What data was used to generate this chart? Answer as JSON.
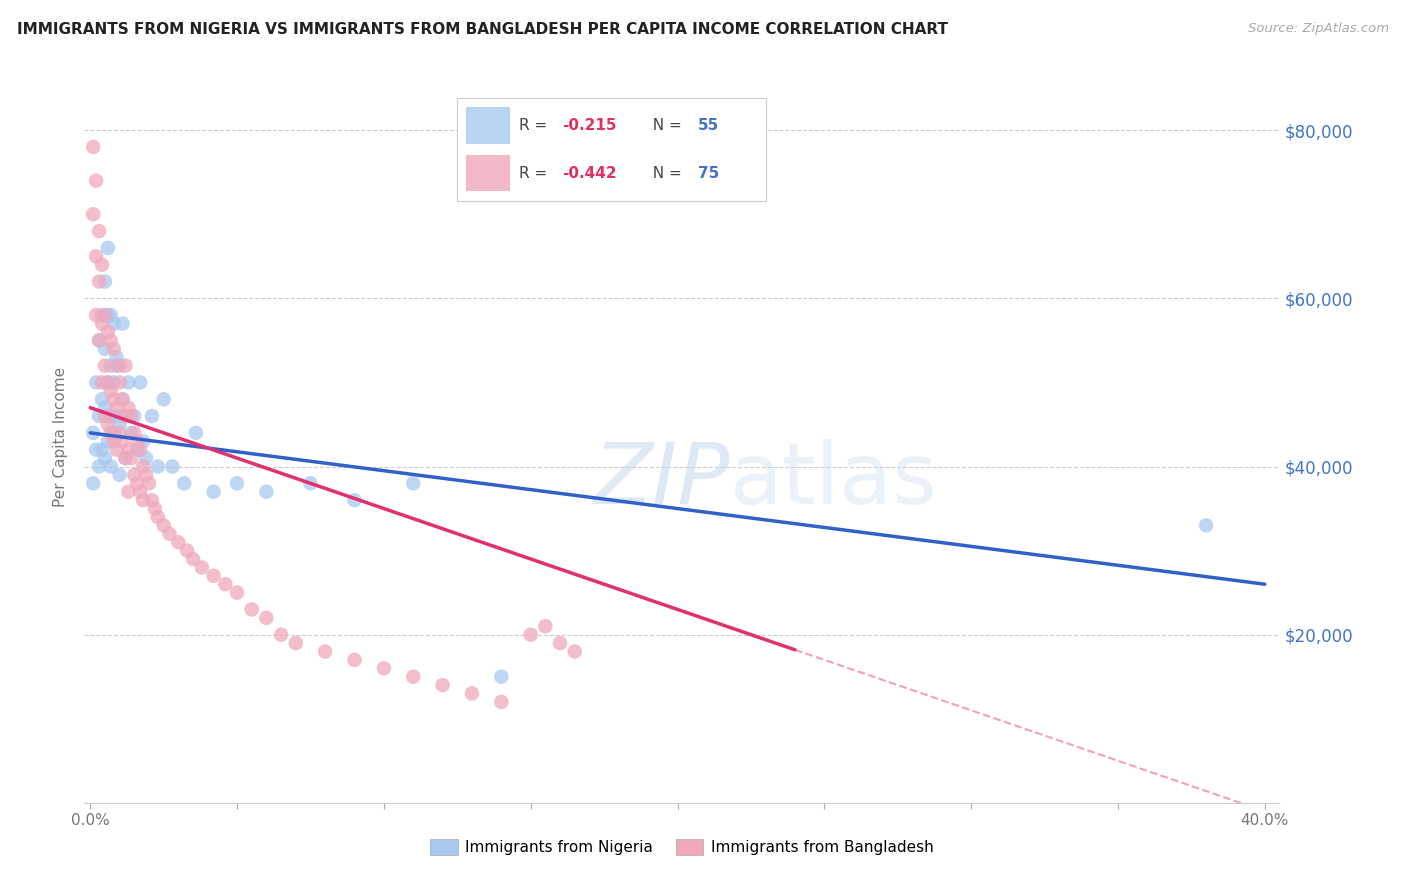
{
  "title": "IMMIGRANTS FROM NIGERIA VS IMMIGRANTS FROM BANGLADESH PER CAPITA INCOME CORRELATION CHART",
  "source": "Source: ZipAtlas.com",
  "ylabel": "Per Capita Income",
  "ylim": [
    0,
    87000
  ],
  "xlim": [
    -0.002,
    0.405
  ],
  "yticks": [
    0,
    20000,
    40000,
    60000,
    80000
  ],
  "ytick_labels": [
    "",
    "$20,000",
    "$40,000",
    "$60,000",
    "$80,000"
  ],
  "nigeria_R": "-0.215",
  "nigeria_N": "55",
  "bangladesh_R": "-0.442",
  "bangladesh_N": "75",
  "nigeria_color": "#a8c8f0",
  "bangladesh_color": "#f0a8bc",
  "nigeria_line_color": "#3060c8",
  "bangladesh_line_color": "#e03070",
  "legend_label1": "Immigrants from Nigeria",
  "legend_label2": "Immigrants from Bangladesh",
  "watermark_zip": "ZIP",
  "watermark_atlas": "atlas",
  "nigeria_line_intercept": 44000,
  "nigeria_line_slope": -45000,
  "bangladesh_line_intercept": 47000,
  "bangladesh_line_slope": -120000,
  "bangladesh_line_solid_end": 0.24,
  "nigeria_x": [
    0.001,
    0.001,
    0.002,
    0.002,
    0.003,
    0.003,
    0.003,
    0.004,
    0.004,
    0.004,
    0.005,
    0.005,
    0.005,
    0.005,
    0.006,
    0.006,
    0.006,
    0.006,
    0.007,
    0.007,
    0.007,
    0.007,
    0.008,
    0.008,
    0.008,
    0.009,
    0.009,
    0.01,
    0.01,
    0.01,
    0.011,
    0.011,
    0.012,
    0.012,
    0.013,
    0.014,
    0.015,
    0.016,
    0.017,
    0.018,
    0.019,
    0.021,
    0.023,
    0.025,
    0.028,
    0.032,
    0.036,
    0.042,
    0.05,
    0.06,
    0.075,
    0.09,
    0.11,
    0.14,
    0.38
  ],
  "nigeria_y": [
    44000,
    38000,
    50000,
    42000,
    55000,
    46000,
    40000,
    58000,
    48000,
    42000,
    62000,
    54000,
    47000,
    41000,
    66000,
    58000,
    50000,
    43000,
    58000,
    52000,
    46000,
    40000,
    57000,
    50000,
    44000,
    53000,
    46000,
    52000,
    45000,
    39000,
    57000,
    48000,
    46000,
    41000,
    50000,
    44000,
    46000,
    42000,
    50000,
    43000,
    41000,
    46000,
    40000,
    48000,
    40000,
    38000,
    44000,
    37000,
    38000,
    37000,
    38000,
    36000,
    38000,
    15000,
    33000
  ],
  "bangladesh_x": [
    0.001,
    0.001,
    0.002,
    0.002,
    0.002,
    0.003,
    0.003,
    0.003,
    0.004,
    0.004,
    0.004,
    0.005,
    0.005,
    0.005,
    0.006,
    0.006,
    0.006,
    0.007,
    0.007,
    0.007,
    0.008,
    0.008,
    0.008,
    0.009,
    0.009,
    0.009,
    0.01,
    0.01,
    0.011,
    0.011,
    0.012,
    0.012,
    0.012,
    0.013,
    0.013,
    0.013,
    0.014,
    0.014,
    0.015,
    0.015,
    0.016,
    0.016,
    0.017,
    0.017,
    0.018,
    0.018,
    0.019,
    0.02,
    0.021,
    0.022,
    0.023,
    0.025,
    0.027,
    0.03,
    0.033,
    0.035,
    0.038,
    0.042,
    0.046,
    0.05,
    0.055,
    0.06,
    0.065,
    0.07,
    0.08,
    0.09,
    0.1,
    0.11,
    0.12,
    0.13,
    0.14,
    0.15,
    0.155,
    0.16,
    0.165
  ],
  "bangladesh_y": [
    78000,
    70000,
    74000,
    65000,
    58000,
    68000,
    62000,
    55000,
    64000,
    57000,
    50000,
    58000,
    52000,
    46000,
    56000,
    50000,
    45000,
    55000,
    49000,
    44000,
    54000,
    48000,
    43000,
    52000,
    47000,
    42000,
    50000,
    44000,
    48000,
    43000,
    52000,
    46000,
    41000,
    47000,
    42000,
    37000,
    46000,
    41000,
    44000,
    39000,
    43000,
    38000,
    42000,
    37000,
    40000,
    36000,
    39000,
    38000,
    36000,
    35000,
    34000,
    33000,
    32000,
    31000,
    30000,
    29000,
    28000,
    27000,
    26000,
    25000,
    23000,
    22000,
    20000,
    19000,
    18000,
    17000,
    16000,
    15000,
    14000,
    13000,
    12000,
    20000,
    21000,
    19000,
    18000
  ]
}
